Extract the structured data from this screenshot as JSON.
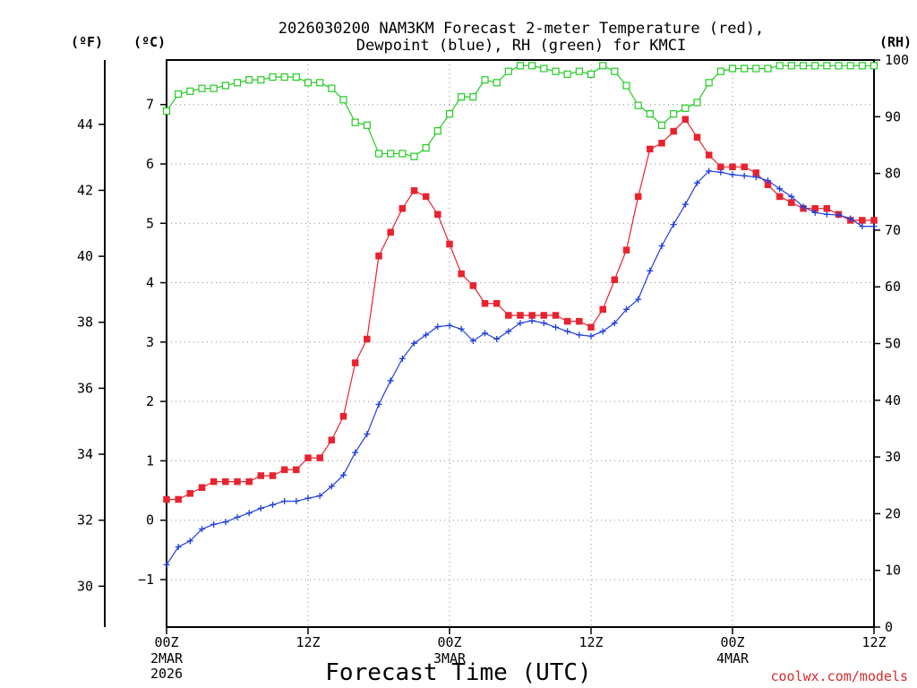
{
  "chart_data": {
    "type": "line",
    "title_line1": "2026030200 NAM3KM Forecast 2-meter Temperature (red),",
    "title_line2": "Dewpoint (blue), RH (green) for KMCI",
    "xlabel": "Forecast Time (UTC)",
    "credit": "coolwx.com/models",
    "colors": {
      "temperature": "#e8232e",
      "dewpoint": "#1f3fe0",
      "rh": "#22cc22",
      "grid": "#888888"
    },
    "x_hours": [
      0,
      1,
      2,
      3,
      4,
      5,
      6,
      7,
      8,
      9,
      10,
      11,
      12,
      13,
      14,
      15,
      16,
      17,
      18,
      19,
      20,
      21,
      22,
      23,
      24,
      25,
      26,
      27,
      28,
      29,
      30,
      31,
      32,
      33,
      34,
      35,
      36,
      37,
      38,
      39,
      40,
      41,
      42,
      43,
      44,
      45,
      46,
      47,
      48,
      49,
      50,
      51,
      52,
      53,
      54,
      55,
      56,
      57,
      58,
      59,
      60
    ],
    "xlim": [
      0,
      60
    ],
    "x_ticks": [
      {
        "hour": 0,
        "label": "00Z",
        "date": "2MAR",
        "year": "2026"
      },
      {
        "hour": 12,
        "label": "12Z"
      },
      {
        "hour": 24,
        "label": "00Z",
        "date": "3MAR"
      },
      {
        "hour": 36,
        "label": "12Z"
      },
      {
        "hour": 48,
        "label": "00Z",
        "date": "4MAR"
      },
      {
        "hour": 60,
        "label": "12Z"
      }
    ],
    "celsius_axis": {
      "label": "(ºC)",
      "ylim": [
        -1.8,
        7.75
      ],
      "ticks": [
        -1,
        0,
        1,
        2,
        3,
        4,
        5,
        6,
        7
      ]
    },
    "fahrenheit_axis": {
      "label": "(ºF)",
      "ticks": [
        30,
        32,
        34,
        36,
        38,
        40,
        42,
        44
      ]
    },
    "rh_axis": {
      "label": "(RH)",
      "ylim": [
        0,
        100
      ],
      "ticks": [
        0,
        10,
        20,
        30,
        40,
        50,
        60,
        70,
        80,
        90,
        100
      ]
    },
    "series": [
      {
        "name": "Temperature",
        "units": "C",
        "values": [
          0.35,
          0.35,
          0.45,
          0.55,
          0.65,
          0.65,
          0.65,
          0.65,
          0.75,
          0.75,
          0.85,
          0.85,
          1.05,
          1.05,
          1.35,
          1.75,
          2.65,
          3.05,
          4.45,
          4.85,
          5.25,
          5.55,
          5.45,
          5.15,
          4.65,
          4.15,
          3.95,
          3.65,
          3.65,
          3.45,
          3.45,
          3.45,
          3.45,
          3.45,
          3.35,
          3.35,
          3.25,
          3.55,
          4.05,
          4.55,
          5.45,
          6.25,
          6.35,
          6.55,
          6.75,
          6.45,
          6.15,
          5.95,
          5.95,
          5.95,
          5.85,
          5.65,
          5.45,
          5.35,
          5.25,
          5.25,
          5.25,
          5.15,
          5.05,
          5.05,
          5.05
        ]
      },
      {
        "name": "Dewpoint",
        "units": "C",
        "values": [
          -0.75,
          -0.45,
          -0.35,
          -0.15,
          -0.07,
          -0.03,
          0.05,
          0.12,
          0.2,
          0.26,
          0.32,
          0.32,
          0.37,
          0.41,
          0.57,
          0.76,
          1.14,
          1.45,
          1.95,
          2.35,
          2.72,
          2.98,
          3.12,
          3.26,
          3.28,
          3.22,
          3.02,
          3.15,
          3.05,
          3.18,
          3.32,
          3.36,
          3.32,
          3.25,
          3.18,
          3.12,
          3.1,
          3.18,
          3.32,
          3.55,
          3.72,
          4.2,
          4.62,
          4.98,
          5.32,
          5.68,
          5.88,
          5.86,
          5.82,
          5.8,
          5.78,
          5.72,
          5.58,
          5.45,
          5.28,
          5.18,
          5.15,
          5.14,
          5.08,
          4.95,
          4.95
        ]
      },
      {
        "name": "RH",
        "units": "%",
        "values": [
          91,
          94,
          94.5,
          95,
          95,
          95.5,
          96,
          96.5,
          96.5,
          97,
          97,
          97,
          96,
          96,
          95,
          93,
          89,
          88.5,
          83.5,
          83.5,
          83.5,
          83,
          84.5,
          87.5,
          90.5,
          93.5,
          93.5,
          96.5,
          96,
          98,
          99,
          99,
          98.5,
          98,
          97.5,
          98,
          97.5,
          99,
          98,
          95.5,
          92,
          90.5,
          88.5,
          90.5,
          91.5,
          92.5,
          96,
          98,
          98.5,
          98.5,
          98.5,
          98.5,
          99,
          99,
          99,
          99,
          99,
          99,
          99,
          99,
          99
        ]
      }
    ]
  }
}
